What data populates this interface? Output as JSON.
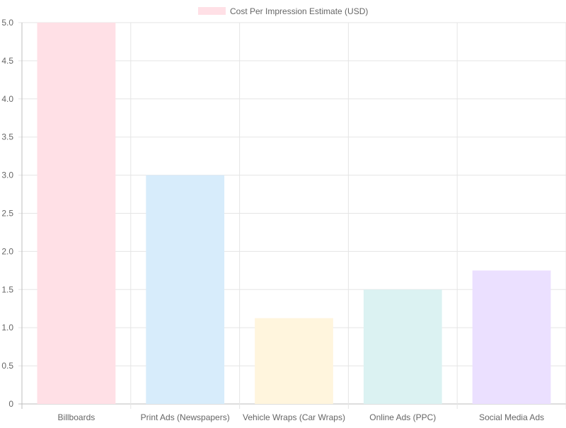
{
  "chart_data": {
    "type": "bar",
    "categories": [
      "Billboards",
      "Print Ads (Newspapers)",
      "Vehicle Wraps (Car Wraps)",
      "Online Ads (PPC)",
      "Social Media Ads"
    ],
    "series": [
      {
        "name": "Cost Per Impression Estimate (USD)",
        "values": [
          5.0,
          3.0,
          1.125,
          1.5,
          1.75
        ]
      }
    ],
    "bar_colors": [
      "#ffe0e6",
      "#d7ecfb",
      "#fff5dd",
      "#dbf2f2",
      "#ebe0ff"
    ],
    "legend_color": "#ffe0e6",
    "ylim": [
      0,
      5
    ],
    "y_ticks": [
      "0",
      "0.5",
      "1.0",
      "1.5",
      "2.0",
      "2.5",
      "3.0",
      "3.5",
      "4.0",
      "4.5",
      "5.0"
    ],
    "grid": true,
    "legend_position": "top"
  }
}
